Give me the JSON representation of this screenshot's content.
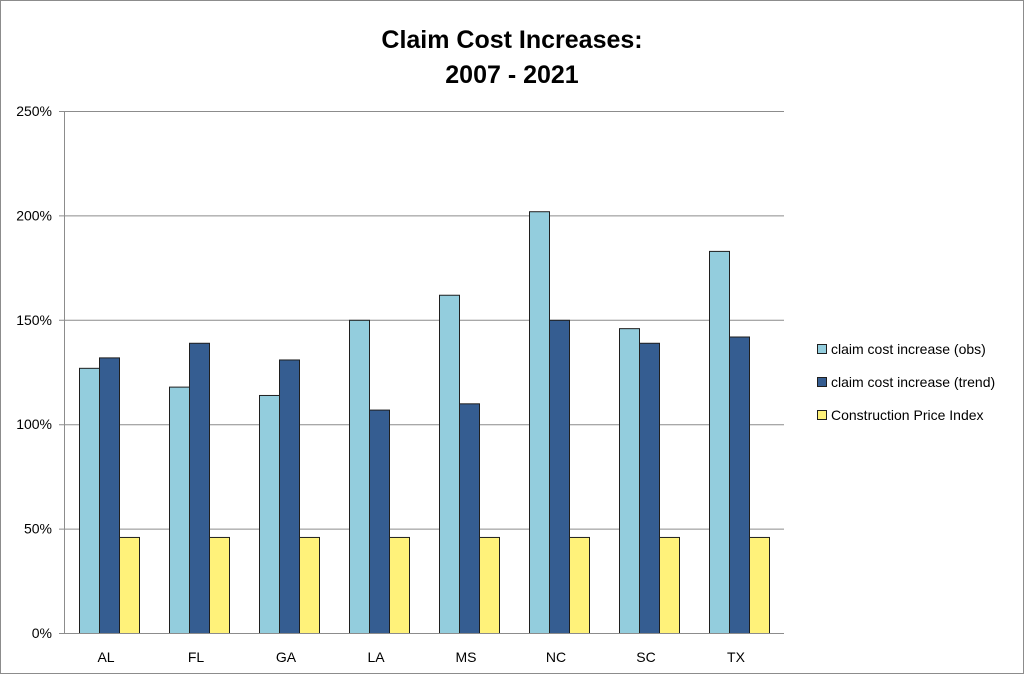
{
  "chart_data": {
    "type": "bar",
    "title_lines": [
      "Claim Cost Increases:",
      "2007 - 2021"
    ],
    "categories": [
      "AL",
      "FL",
      "GA",
      "LA",
      "MS",
      "NC",
      "SC",
      "TX"
    ],
    "series": [
      {
        "name": "claim cost increase (obs)",
        "color": "#93cddd",
        "values": [
          127,
          118,
          114,
          150,
          162,
          202,
          146,
          183
        ]
      },
      {
        "name": "claim cost increase (trend)",
        "color": "#355d91",
        "values": [
          132,
          139,
          131,
          107,
          110,
          150,
          139,
          142
        ]
      },
      {
        "name": "Construction Price Index",
        "color": "#fff27a",
        "values": [
          46,
          46,
          46,
          46,
          46,
          46,
          46,
          46
        ]
      }
    ],
    "y_ticks": [
      "0%",
      "50%",
      "100%",
      "150%",
      "200%",
      "250%"
    ],
    "y_tick_values": [
      0,
      50,
      100,
      150,
      200,
      250
    ],
    "ylim": [
      0,
      250
    ],
    "xlabel": "",
    "ylabel": "",
    "grid": true,
    "legend_position": "right"
  }
}
